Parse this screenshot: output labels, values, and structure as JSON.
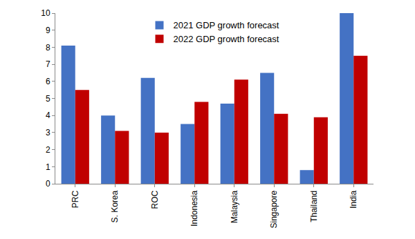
{
  "chart_data": {
    "type": "bar",
    "categories": [
      "PRC",
      "S. Korea",
      "ROC",
      "Indonesia",
      "Malaysia",
      "Singapore",
      "Thailand",
      "India"
    ],
    "series": [
      {
        "name": "2021 GDP growth forecast",
        "color": "#4472c4",
        "values": [
          8.1,
          4.0,
          6.2,
          3.5,
          4.7,
          6.5,
          0.8,
          10.0
        ]
      },
      {
        "name": "2022 GDP growth forecast",
        "color": "#c00000",
        "values": [
          5.5,
          3.1,
          3.0,
          4.8,
          6.1,
          4.1,
          3.9,
          7.5
        ]
      }
    ],
    "ylim": [
      0,
      10
    ],
    "yticks": [
      0,
      1,
      2,
      3,
      4,
      5,
      6,
      7,
      8,
      9,
      10
    ],
    "grid": false,
    "legend": "top"
  }
}
